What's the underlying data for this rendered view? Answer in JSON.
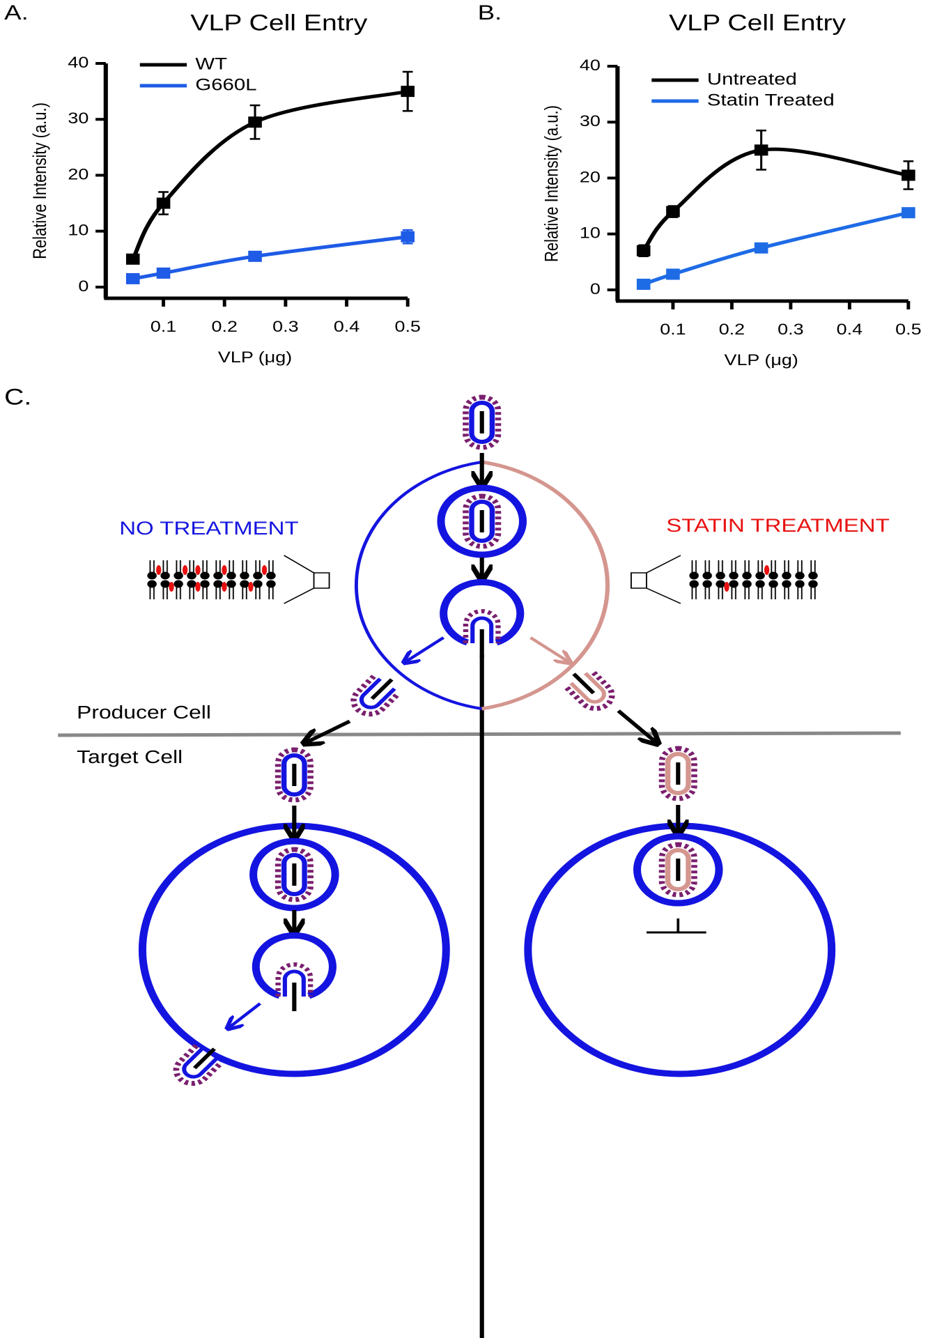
{
  "chart_data": [
    {
      "type": "line",
      "panel": "A.",
      "title": "VLP Cell Entry",
      "x_label": "VLP (μg)",
      "y_label": "Relative Intensity (a.u.)",
      "x": [
        0.05,
        0.1,
        0.25,
        0.5
      ],
      "series": [
        {
          "name": "WT",
          "color": "#000000",
          "values": [
            5,
            15,
            29.5,
            35
          ],
          "errors": [
            0.8,
            2,
            3,
            3.5
          ]
        },
        {
          "name": "G660L",
          "color": "#1e5be6",
          "values": [
            1.5,
            2.5,
            5.5,
            9
          ],
          "errors": [
            0.5,
            0.5,
            0.8,
            1.2
          ]
        }
      ],
      "xlim": [
        0,
        0.5
      ],
      "ylim": [
        -2,
        40
      ],
      "xticks": [
        0.1,
        0.2,
        0.3,
        0.4,
        0.5
      ],
      "yticks": [
        0,
        10,
        20,
        30,
        40
      ],
      "legend": "upper left"
    },
    {
      "type": "line",
      "panel": "B.",
      "title": "VLP Cell Entry",
      "x_label": "VLP (μg)",
      "y_label": "Relative Intensity (a.u.)",
      "x": [
        0.05,
        0.1,
        0.25,
        0.5
      ],
      "series": [
        {
          "name": "Untreated",
          "color": "#000000",
          "values": [
            7,
            14,
            25,
            20.5
          ],
          "errors": [
            1,
            1,
            3.5,
            2.5
          ]
        },
        {
          "name": "Statin Treated",
          "color": "#1e6be6",
          "values": [
            1,
            2.8,
            7.5,
            13.8
          ],
          "errors": [
            0.5,
            0.5,
            0.6,
            0.8
          ]
        }
      ],
      "xlim": [
        0,
        0.5
      ],
      "ylim": [
        -2,
        40
      ],
      "xticks": [
        0.1,
        0.2,
        0.3,
        0.4,
        0.5
      ],
      "yticks": [
        0,
        10,
        20,
        30,
        40
      ],
      "legend": "upper left"
    }
  ],
  "diagram": {
    "label": "C.",
    "left_label": "NO TREATMENT",
    "right_label": "STATIN TREATMENT",
    "producer": "Producer Cell",
    "target": "Target Cell"
  }
}
